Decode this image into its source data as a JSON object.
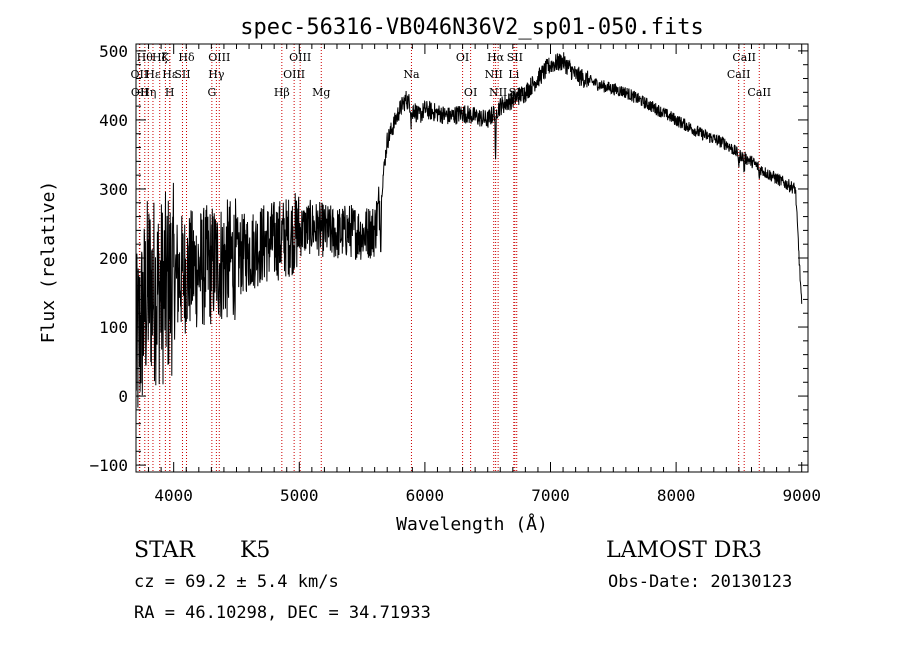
{
  "chart_data": {
    "type": "line",
    "title": "spec-56316-VB046N36V2_sp01-050.fits",
    "xlabel": "Wavelength (Å)",
    "ylabel": "Flux (relative)",
    "xlim": [
      3700,
      9050
    ],
    "ylim": [
      -110,
      510
    ],
    "xticks": [
      4000,
      5000,
      6000,
      7000,
      8000,
      9000
    ],
    "yticks": [
      -100,
      0,
      100,
      200,
      300,
      400,
      500
    ],
    "tick_labels_x": [
      "4000",
      "5000",
      "6000",
      "7000",
      "8000",
      "9000"
    ],
    "tick_labels_y": [
      "−100",
      "0",
      "100",
      "200",
      "300",
      "400",
      "500"
    ],
    "line_color": "#000000",
    "marker_color": "#cc0000",
    "spectrum_anchors": [
      [
        3700,
        60
      ],
      [
        3800,
        160
      ],
      [
        3900,
        150
      ],
      [
        4000,
        170
      ],
      [
        4100,
        180
      ],
      [
        4200,
        185
      ],
      [
        4300,
        190
      ],
      [
        4400,
        195
      ],
      [
        4500,
        200
      ],
      [
        4600,
        210
      ],
      [
        4700,
        220
      ],
      [
        4800,
        225
      ],
      [
        4900,
        230
      ],
      [
        5000,
        240
      ],
      [
        5100,
        245
      ],
      [
        5200,
        240
      ],
      [
        5300,
        235
      ],
      [
        5400,
        240
      ],
      [
        5500,
        235
      ],
      [
        5600,
        240
      ],
      [
        5650,
        290
      ],
      [
        5700,
        370
      ],
      [
        5800,
        415
      ],
      [
        5850,
        430
      ],
      [
        5900,
        420
      ],
      [
        5950,
        405
      ],
      [
        6000,
        415
      ],
      [
        6100,
        410
      ],
      [
        6200,
        405
      ],
      [
        6300,
        410
      ],
      [
        6400,
        405
      ],
      [
        6500,
        400
      ],
      [
        6600,
        420
      ],
      [
        6700,
        430
      ],
      [
        6800,
        440
      ],
      [
        6900,
        460
      ],
      [
        7000,
        480
      ],
      [
        7100,
        485
      ],
      [
        7200,
        465
      ],
      [
        7400,
        450
      ],
      [
        7600,
        440
      ],
      [
        7800,
        420
      ],
      [
        8000,
        400
      ],
      [
        8200,
        380
      ],
      [
        8400,
        365
      ],
      [
        8500,
        350
      ],
      [
        8600,
        340
      ],
      [
        8700,
        325
      ],
      [
        8800,
        315
      ],
      [
        8900,
        305
      ],
      [
        8950,
        300
      ],
      [
        9000,
        130
      ]
    ],
    "spectrum_features": [
      {
        "wave": 6563,
        "depth": 90
      },
      {
        "wave": 5890,
        "depth": 25
      },
      {
        "wave": 8500,
        "depth": 20
      },
      {
        "wave": 8542,
        "depth": 25
      },
      {
        "wave": 8662,
        "depth": 20
      },
      {
        "wave": 5650,
        "depth": 80
      },
      {
        "wave": 5900,
        "depth": 20
      }
    ],
    "line_markers": [
      {
        "wave": 3727,
        "label": "OII",
        "row": 2
      },
      {
        "wave": 3730,
        "label": "OII",
        "row": 3
      },
      {
        "wave": 3770,
        "label": "Hθ",
        "row": 1
      },
      {
        "wave": 3798,
        "label": "Hη",
        "row": 3
      },
      {
        "wave": 3835,
        "label": "Hε",
        "row": 2
      },
      {
        "wave": 3889,
        "label": "Hζ",
        "row": 1
      },
      {
        "wave": 3934,
        "label": "K",
        "row": 1
      },
      {
        "wave": 3968,
        "label": "H",
        "row": 3
      },
      {
        "wave": 3970,
        "label": "Hε",
        "row": 2
      },
      {
        "wave": 4070,
        "label": "SII",
        "row": 2
      },
      {
        "wave": 4102,
        "label": "Hδ",
        "row": 1
      },
      {
        "wave": 4304,
        "label": "G",
        "row": 3
      },
      {
        "wave": 4340,
        "label": "Hγ",
        "row": 2
      },
      {
        "wave": 4363,
        "label": "OIII",
        "row": 1
      },
      {
        "wave": 4861,
        "label": "Hβ",
        "row": 3
      },
      {
        "wave": 4959,
        "label": "OIII",
        "row": 2
      },
      {
        "wave": 5007,
        "label": "OIII",
        "row": 1
      },
      {
        "wave": 5175,
        "label": "Mg",
        "row": 3
      },
      {
        "wave": 5893,
        "label": "Na",
        "row": 2
      },
      {
        "wave": 6300,
        "label": "OI",
        "row": 1
      },
      {
        "wave": 6364,
        "label": "OI",
        "row": 3
      },
      {
        "wave": 6548,
        "label": "NII",
        "row": 2
      },
      {
        "wave": 6563,
        "label": "Hα",
        "row": 1
      },
      {
        "wave": 6583,
        "label": "NII",
        "row": 3
      },
      {
        "wave": 6708,
        "label": "Li",
        "row": 2
      },
      {
        "wave": 6716,
        "label": "SII",
        "row": 1
      },
      {
        "wave": 6731,
        "label": "SII",
        "row": 3
      },
      {
        "wave": 8498,
        "label": "CaII",
        "row": 2
      },
      {
        "wave": 8542,
        "label": "CaII",
        "row": 1
      },
      {
        "wave": 8662,
        "label": "CaII",
        "row": 3
      }
    ]
  },
  "footer": {
    "class_label": "STAR",
    "subclass": "K5",
    "survey": "LAMOST DR3",
    "cz": "cz = 69.2 ± 5.4 km/s",
    "obs_date": "Obs-Date: 20130123",
    "coords": "RA =  46.10298, DEC =  34.71933"
  }
}
